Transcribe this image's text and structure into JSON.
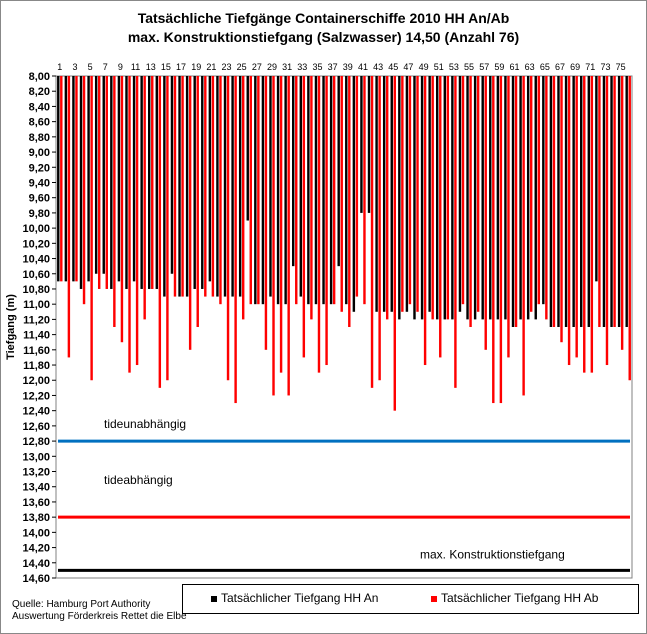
{
  "chart_data": {
    "type": "bar",
    "title": "Tatsächliche Tiefgänge Containerschiffe 2010 HH An/Ab",
    "subtitle": "max. Konstruktionstiefgang (Salzwasser) 14,50 (Anzahl 76)",
    "ylabel": "Tiefgang (m)",
    "xlabel": "",
    "ylim": [
      8.0,
      14.6
    ],
    "y_inverted": true,
    "bar_baseline": 8.0,
    "y_ticks": [
      "8,00",
      "8,20",
      "8,40",
      "8,60",
      "8,80",
      "9,00",
      "9,20",
      "9,40",
      "9,60",
      "9,80",
      "10,00",
      "10,20",
      "10,40",
      "10,60",
      "10,80",
      "11,00",
      "11,20",
      "11,40",
      "11,60",
      "11,80",
      "12,00",
      "12,20",
      "12,40",
      "12,60",
      "12,80",
      "13,00",
      "13,20",
      "13,40",
      "13,60",
      "13,80",
      "14,00",
      "14,20",
      "14,40",
      "14,60"
    ],
    "x_tick_labels": [
      "1",
      "3",
      "5",
      "7",
      "9",
      "11",
      "13",
      "15",
      "17",
      "19",
      "21",
      "23",
      "25",
      "27",
      "29",
      "31",
      "33",
      "35",
      "37",
      "39",
      "41",
      "43",
      "45",
      "47",
      "49",
      "51",
      "53",
      "55",
      "57",
      "59",
      "61",
      "63",
      "65",
      "67",
      "69",
      "71",
      "73",
      "75"
    ],
    "categories": [
      1,
      2,
      3,
      4,
      5,
      6,
      7,
      8,
      9,
      10,
      11,
      12,
      13,
      14,
      15,
      16,
      17,
      18,
      19,
      20,
      21,
      22,
      23,
      24,
      25,
      26,
      27,
      28,
      29,
      30,
      31,
      32,
      33,
      34,
      35,
      36,
      37,
      38,
      39,
      40,
      41,
      42,
      43,
      44,
      45,
      46,
      47,
      48,
      49,
      50,
      51,
      52,
      53,
      54,
      55,
      56,
      57,
      58,
      59,
      60,
      61,
      62,
      63,
      64,
      65,
      66,
      67,
      68,
      69,
      70,
      71,
      72,
      73,
      74,
      75,
      76
    ],
    "series": [
      {
        "name": "Tatsächlicher Tiefgang HH An",
        "color": "#000000",
        "values": [
          10.7,
          10.7,
          10.7,
          10.8,
          10.7,
          10.6,
          10.6,
          10.8,
          10.7,
          10.8,
          10.7,
          10.8,
          10.8,
          10.8,
          10.9,
          10.6,
          10.9,
          10.9,
          10.8,
          10.8,
          10.7,
          10.9,
          10.9,
          10.9,
          10.9,
          9.9,
          11.0,
          11.0,
          10.9,
          11.0,
          11.0,
          10.5,
          10.9,
          11.0,
          11.0,
          11.0,
          11.0,
          10.5,
          11.0,
          11.1,
          9.8,
          9.8,
          11.1,
          11.1,
          11.1,
          11.2,
          11.1,
          11.2,
          11.2,
          11.1,
          11.2,
          11.2,
          11.2,
          11.1,
          11.2,
          11.2,
          11.2,
          11.2,
          11.2,
          11.2,
          11.3,
          11.2,
          11.2,
          11.2,
          11.0,
          11.3,
          11.3,
          11.3,
          11.3,
          11.3,
          11.3,
          10.7,
          11.3,
          11.3,
          11.3,
          11.3
        ]
      },
      {
        "name": "Tatsächlicher Tiefgang HH Ab",
        "color": "#ff0000",
        "values": [
          10.7,
          11.7,
          10.7,
          11.0,
          12.0,
          10.8,
          10.8,
          11.3,
          11.5,
          11.9,
          11.8,
          11.2,
          10.8,
          12.1,
          12.0,
          10.9,
          10.9,
          11.6,
          11.3,
          10.9,
          10.9,
          11.0,
          12.0,
          12.3,
          11.2,
          11.0,
          11.0,
          11.6,
          12.2,
          11.9,
          12.2,
          11.0,
          11.7,
          11.2,
          11.9,
          11.8,
          11.0,
          11.1,
          11.3,
          10.9,
          11.0,
          12.1,
          12.0,
          11.2,
          12.4,
          11.1,
          11.0,
          11.1,
          11.8,
          11.2,
          11.7,
          11.2,
          12.1,
          11.0,
          11.3,
          11.1,
          11.6,
          12.3,
          12.3,
          11.7,
          11.3,
          12.2,
          11.1,
          11.0,
          11.2,
          11.3,
          11.5,
          11.8,
          11.7,
          11.9,
          11.9,
          11.3,
          11.8,
          11.3,
          11.6,
          12.0
        ]
      }
    ],
    "reference_lines": [
      {
        "name": "tideunabhängig",
        "value": 12.8,
        "color": "#0070c0"
      },
      {
        "name": "tideabhängig",
        "value": 13.8,
        "color": "#ff0000"
      },
      {
        "name": "max. Konstruktionstiefgang",
        "value": 14.5,
        "color": "#000000"
      }
    ],
    "legend_position": "bottom-right",
    "grid": false
  },
  "labels": {
    "title": "Tatsächliche Tiefgänge Containerschiffe 2010 HH An/Ab",
    "subtitle": "max. Konstruktionstiefgang (Salzwasser) 14,50 (Anzahl 76)",
    "ylabel": "Tiefgang (m)",
    "legend_an": "Tatsächlicher Tiefgang HH An",
    "legend_ab": "Tatsächlicher Tiefgang HH Ab",
    "source1": "Quelle: Hamburg Port Authority",
    "source2": "Auswertung Förderkreis Rettet die Elbe"
  }
}
